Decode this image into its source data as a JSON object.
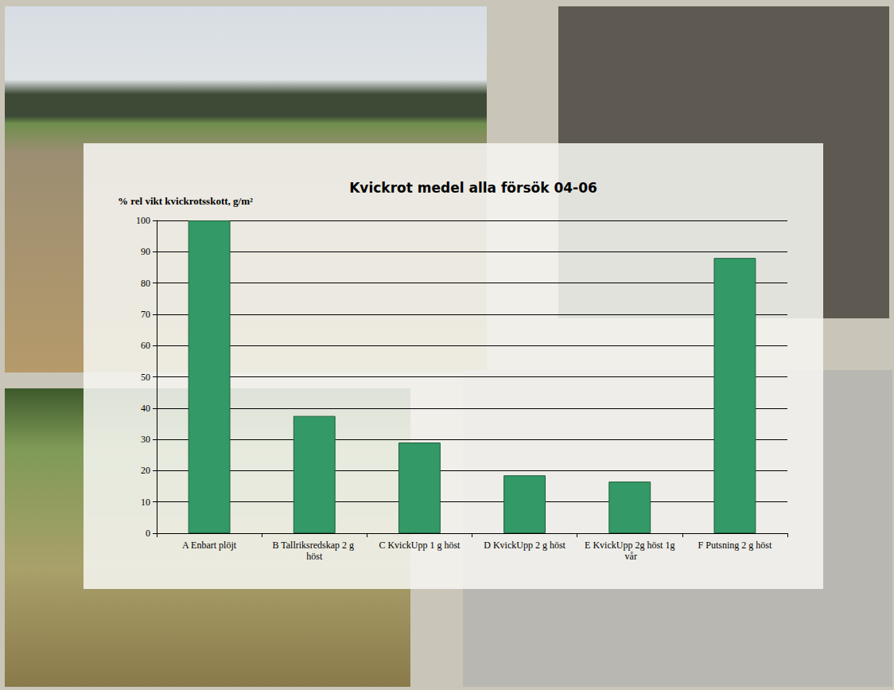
{
  "chart_data": {
    "type": "bar",
    "title": "Kvickrot medel alla försök 04-06",
    "y_label": "% rel vikt kvickrotsskott, g/m²",
    "categories": [
      "A Enbart plöjt",
      "B Tallriksredskap 2 g höst",
      "C KvickUpp 1 g höst",
      "D KvickUpp 2 g höst",
      "E KvickUpp 2g höst 1g vår",
      "F Putsning 2 g höst"
    ],
    "values": [
      100,
      37.5,
      29,
      18.5,
      16.5,
      88
    ],
    "color": "#339966",
    "ylim": [
      0,
      100
    ],
    "yticks": [
      0,
      10,
      20,
      30,
      40,
      50,
      60,
      70,
      80,
      90,
      100
    ],
    "grid": true
  }
}
